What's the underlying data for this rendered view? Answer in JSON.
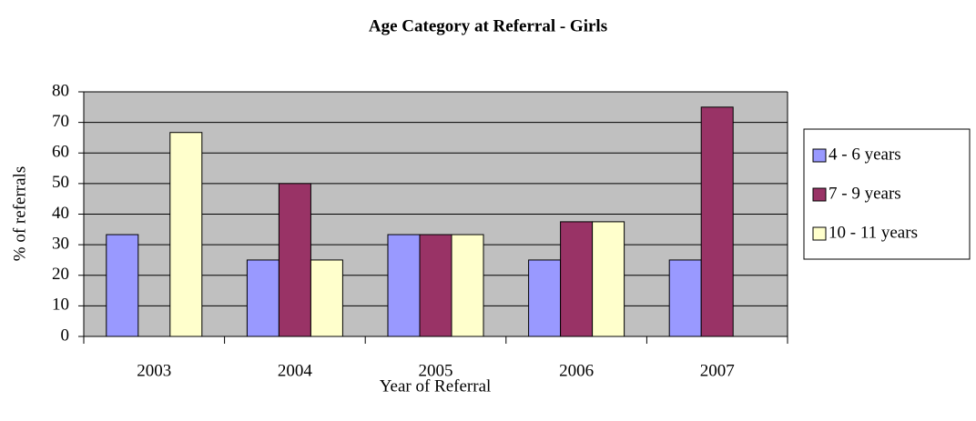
{
  "chart_data": {
    "type": "bar",
    "title": "Age Category at Referral - Girls",
    "x_label": "Year of Referral",
    "y_label": "% of referrals",
    "categories": [
      "2003",
      "2004",
      "2005",
      "2006",
      "2007"
    ],
    "series": [
      {
        "name": "4 - 6 years",
        "color": "#9999ff",
        "values": [
          33.3,
          25,
          33.3,
          25,
          25
        ]
      },
      {
        "name": "7 - 9 years",
        "color": "#993366",
        "values": [
          null,
          50,
          33.3,
          37.5,
          75
        ]
      },
      {
        "name": "10 - 11 years",
        "color": "#ffffcc",
        "values": [
          66.7,
          25,
          33.3,
          37.5,
          null
        ]
      }
    ],
    "ylim": [
      0,
      80
    ],
    "yticks": [
      0,
      10,
      20,
      30,
      40,
      50,
      60,
      70,
      80
    ],
    "grid": true,
    "legend": "right"
  }
}
